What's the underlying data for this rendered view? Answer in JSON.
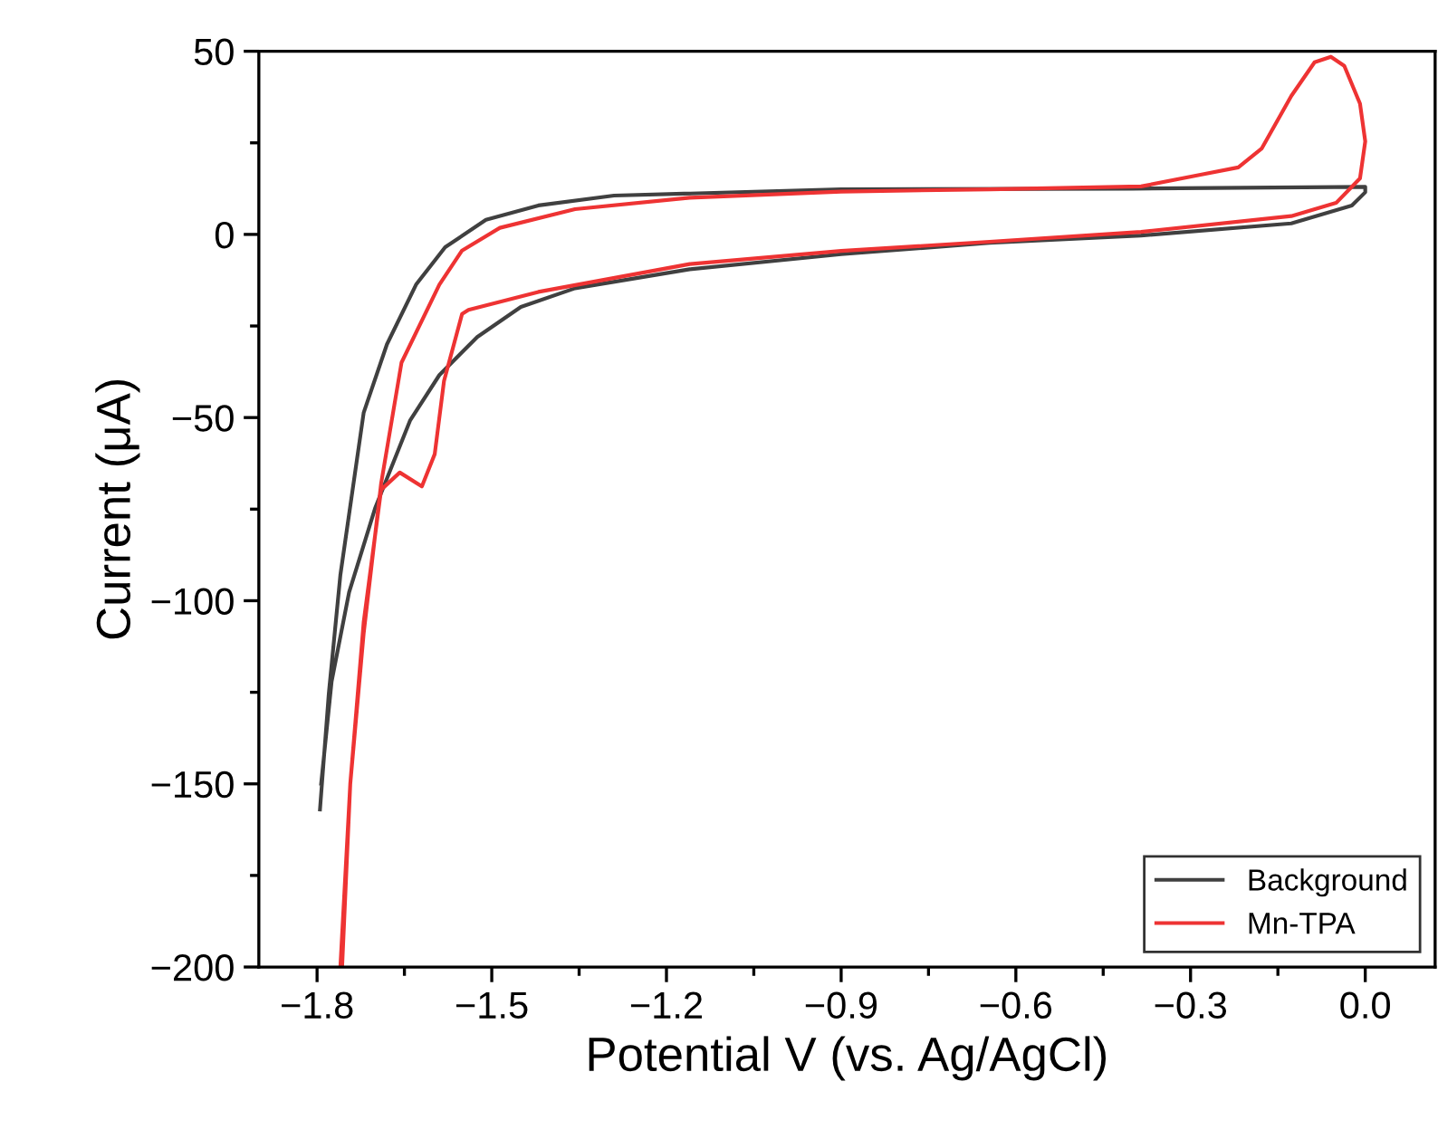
{
  "chart_data": {
    "type": "line",
    "xlabel": "Potential V (vs. Ag/AgCl)",
    "ylabel": "Current (μA)",
    "xlim": [
      -1.9,
      0.12
    ],
    "ylim": [
      -200,
      50
    ],
    "xticks": [
      -1.8,
      {
        "value": -1.65,
        "label": null
      },
      -1.5,
      {
        "value": -1.35,
        "label": null
      },
      -1.2,
      {
        "value": -1.05,
        "label": null
      },
      -0.9,
      {
        "value": -0.75,
        "label": null
      },
      -0.6,
      {
        "value": -0.45,
        "label": null
      },
      -0.3,
      {
        "value": -0.15,
        "label": null
      },
      {
        "value": 0,
        "label": "0.0"
      }
    ],
    "yticks": [
      -200,
      {
        "value": -175,
        "label": null
      },
      -150,
      {
        "value": -125,
        "label": null
      },
      -100,
      {
        "value": -75,
        "label": null
      },
      -50,
      {
        "value": -25,
        "label": null
      },
      0,
      {
        "value": 25,
        "label": null
      },
      50
    ],
    "grid": false,
    "legend": "bottom right",
    "marker": "none",
    "line_style": "solid",
    "series": [
      {
        "name": "Background",
        "color": "#404040",
        "x": [
          -1.795,
          -1.78,
          -1.76,
          -1.72,
          -1.68,
          -1.63,
          -1.58,
          -1.51,
          -1.42,
          -1.29,
          -0.9,
          -0.4,
          0.0,
          0.0,
          -0.023,
          -0.127,
          -0.385,
          -0.645,
          -0.9,
          -1.16,
          -1.357,
          -1.45,
          -1.525,
          -1.59,
          -1.64,
          -1.7,
          -1.745,
          -1.775,
          -1.793
        ],
        "values": [
          -157,
          -125.6,
          -93,
          -48.7,
          -30,
          -13.7,
          -3.5,
          4,
          7.9,
          10.6,
          12.3,
          12.5,
          13,
          11.5,
          7.9,
          3,
          -0.3,
          -2.3,
          -5.4,
          -9.5,
          -14.7,
          -19.8,
          -28,
          -38.4,
          -50.7,
          -74.6,
          -97.7,
          -122,
          -150
        ]
      },
      {
        "name": "Mn-TPA",
        "color": "#ee3333",
        "x": [
          -1.76,
          -1.743,
          -1.72,
          -1.69,
          -1.658,
          -1.62,
          -1.598,
          -1.582,
          -1.551,
          -1.54,
          -1.42,
          -1.16,
          -0.9,
          -0.645,
          -0.385,
          -0.127,
          -0.05,
          -0.009,
          0.0,
          -0.009,
          -0.036,
          -0.059,
          -0.087,
          -0.127,
          -0.178,
          -0.218,
          -0.283,
          -0.385,
          -0.645,
          -0.9,
          -1.16,
          -1.357,
          -1.486,
          -1.551,
          -1.59,
          -1.655,
          -1.69,
          -1.72,
          -1.743,
          -1.757
        ],
        "values": [
          -200,
          -150,
          -105.9,
          -69.7,
          -65,
          -68.8,
          -60,
          -40,
          -21.7,
          -20.6,
          -15.7,
          -8.1,
          -4.5,
          -2,
          0.7,
          5,
          8.6,
          15.3,
          25.4,
          35.7,
          46,
          48.5,
          47,
          37.8,
          23.4,
          18.3,
          16.3,
          13.1,
          12.3,
          11.7,
          10,
          6.9,
          1.8,
          -4.4,
          -13.7,
          -35,
          -68,
          -109,
          -150,
          -200
        ]
      }
    ]
  }
}
